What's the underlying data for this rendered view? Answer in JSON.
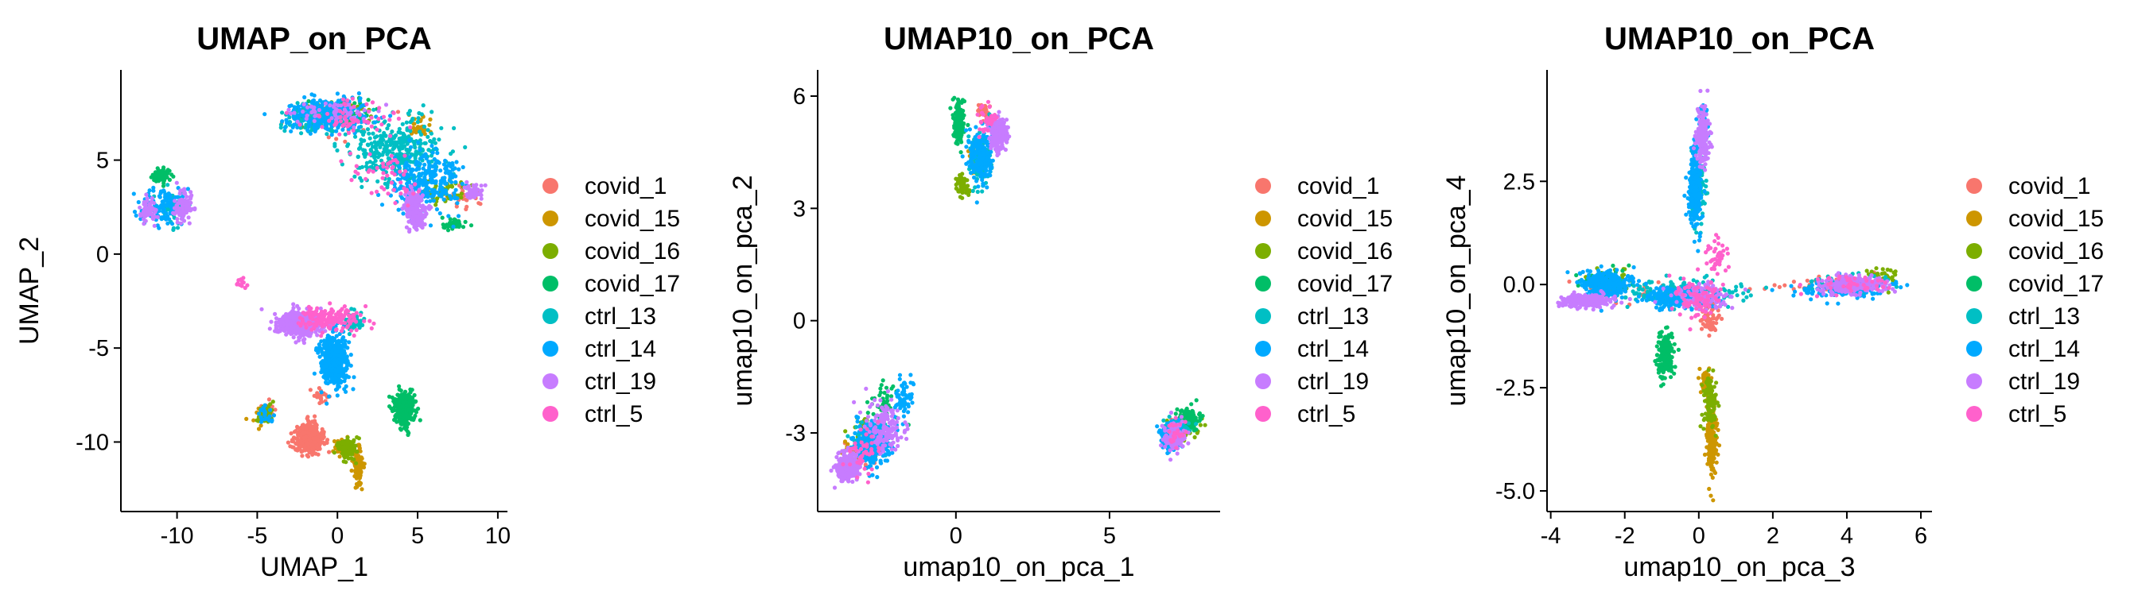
{
  "chart_data": [
    {
      "type": "scatter",
      "title": "UMAP_on_PCA",
      "xlabel": "UMAP_1",
      "ylabel": "UMAP_2",
      "xlim": [
        -13.5,
        10.6
      ],
      "ylim": [
        -13.7,
        9.8
      ],
      "xticks": [
        -10,
        -5,
        0,
        5,
        10
      ],
      "yticks": [
        5,
        0,
        -5,
        -10
      ],
      "ytick_labels": [
        "5",
        "0",
        "-5",
        "-10"
      ],
      "legend_position": "right",
      "series": [
        {
          "name": "covid_1",
          "color": "#F8766D",
          "clusters": [
            {
              "x": -1.8,
              "y": -9.8,
              "sx": 0.8,
              "sy": 0.7,
              "n": 420
            },
            {
              "x": -4.3,
              "y": -8.3,
              "sx": 0.4,
              "sy": 0.4,
              "n": 30
            },
            {
              "x": -1.0,
              "y": -7.6,
              "sx": 0.4,
              "sy": 0.4,
              "n": 25
            },
            {
              "x": 0.0,
              "y": 7.0,
              "sx": 3.0,
              "sy": 1.0,
              "n": 30
            },
            {
              "x": 8.0,
              "y": 3.0,
              "sx": 1.0,
              "sy": 0.7,
              "n": 25
            }
          ]
        },
        {
          "name": "covid_15",
          "color": "#CD9600",
          "clusters": [
            {
              "x": 1.3,
              "y": -11.3,
              "sx": 0.25,
              "sy": 0.9,
              "n": 140
            },
            {
              "x": 0.4,
              "y": -10.3,
              "sx": 0.5,
              "sy": 0.4,
              "n": 60
            },
            {
              "x": 5.2,
              "y": 6.8,
              "sx": 0.6,
              "sy": 0.6,
              "n": 35
            },
            {
              "x": -4.8,
              "y": -8.6,
              "sx": 0.5,
              "sy": 0.6,
              "n": 15
            }
          ]
        },
        {
          "name": "covid_16",
          "color": "#7CAE00",
          "clusters": [
            {
              "x": 0.6,
              "y": -10.3,
              "sx": 0.5,
              "sy": 0.5,
              "n": 140
            },
            {
              "x": -0.2,
              "y": 7.5,
              "sx": 2.3,
              "sy": 0.7,
              "n": 70
            },
            {
              "x": 6.5,
              "y": 3.3,
              "sx": 1.5,
              "sy": 0.7,
              "n": 50
            },
            {
              "x": -4.6,
              "y": -8.4,
              "sx": 0.5,
              "sy": 0.6,
              "n": 30
            }
          ]
        },
        {
          "name": "covid_17",
          "color": "#00BE67",
          "clusters": [
            {
              "x": 4.2,
              "y": -8.2,
              "sx": 0.6,
              "sy": 0.8,
              "n": 300
            },
            {
              "x": -11.0,
              "y": 4.2,
              "sx": 0.5,
              "sy": 0.3,
              "n": 90
            },
            {
              "x": 7.2,
              "y": 1.6,
              "sx": 0.6,
              "sy": 0.3,
              "n": 50
            },
            {
              "x": 0.0,
              "y": 7.5,
              "sx": 2.3,
              "sy": 0.6,
              "n": 60
            }
          ]
        },
        {
          "name": "ctrl_13",
          "color": "#00BFC4",
          "clusters": [
            {
              "x": 3.5,
              "y": 5.5,
              "sx": 2.5,
              "sy": 1.5,
              "n": 350
            },
            {
              "x": -1.0,
              "y": 7.2,
              "sx": 2.3,
              "sy": 0.8,
              "n": 150
            },
            {
              "x": -10.3,
              "y": 2.6,
              "sx": 0.8,
              "sy": 0.8,
              "n": 60
            },
            {
              "x": 1.0,
              "y": -3.6,
              "sx": 0.5,
              "sy": 0.4,
              "n": 60
            }
          ]
        },
        {
          "name": "ctrl_14",
          "color": "#00A9FF",
          "clusters": [
            {
              "x": -0.2,
              "y": -5.7,
              "sx": 0.8,
              "sy": 1.2,
              "n": 450
            },
            {
              "x": -0.6,
              "y": 7.4,
              "sx": 2.4,
              "sy": 0.8,
              "n": 250
            },
            {
              "x": 5.5,
              "y": 3.8,
              "sx": 2.0,
              "sy": 1.5,
              "n": 280
            },
            {
              "x": -11.0,
              "y": 2.6,
              "sx": 1.2,
              "sy": 0.9,
              "n": 120
            },
            {
              "x": -4.5,
              "y": -8.6,
              "sx": 0.4,
              "sy": 0.5,
              "n": 25
            }
          ]
        },
        {
          "name": "ctrl_19",
          "color": "#C77CFF",
          "clusters": [
            {
              "x": -2.4,
              "y": -3.7,
              "sx": 1.3,
              "sy": 0.6,
              "n": 420
            },
            {
              "x": 4.8,
              "y": 2.3,
              "sx": 0.6,
              "sy": 0.8,
              "n": 220
            },
            {
              "x": -9.6,
              "y": 2.5,
              "sx": 0.5,
              "sy": 0.9,
              "n": 90
            },
            {
              "x": -11.8,
              "y": 2.3,
              "sx": 0.5,
              "sy": 0.6,
              "n": 60
            },
            {
              "x": -0.2,
              "y": 7.5,
              "sx": 2.3,
              "sy": 0.6,
              "n": 60
            },
            {
              "x": 8.5,
              "y": 3.3,
              "sx": 0.6,
              "sy": 0.4,
              "n": 50
            }
          ]
        },
        {
          "name": "ctrl_5",
          "color": "#FF61CC",
          "clusters": [
            {
              "x": -0.5,
              "y": -3.4,
              "sx": 1.8,
              "sy": 0.6,
              "n": 150
            },
            {
              "x": 1.0,
              "y": 7.2,
              "sx": 2.4,
              "sy": 0.8,
              "n": 60
            },
            {
              "x": 3.0,
              "y": 4.0,
              "sx": 2.0,
              "sy": 1.2,
              "n": 50
            },
            {
              "x": -6.0,
              "y": -1.5,
              "sx": 0.3,
              "sy": 0.3,
              "n": 12
            }
          ]
        }
      ]
    },
    {
      "type": "scatter",
      "title": "UMAP10_on_PCA",
      "xlabel": "umap10_on_pca_1",
      "ylabel": "umap10_on_pca_2",
      "xlim": [
        -4.5,
        8.6
      ],
      "ylim": [
        -5.1,
        6.7
      ],
      "xticks": [
        0,
        5
      ],
      "yticks": [
        6,
        3,
        0,
        -3
      ],
      "ytick_labels": [
        "6",
        "3",
        "0",
        "-3"
      ],
      "legend_position": "right",
      "series": [
        {
          "name": "covid_1",
          "color": "#F8766D",
          "clusters": [
            {
              "x": 0.9,
              "y": 5.6,
              "sx": 0.15,
              "sy": 0.2,
              "n": 60
            },
            {
              "x": -2.9,
              "y": -3.5,
              "sx": 0.4,
              "sy": 0.4,
              "n": 25
            },
            {
              "x": 7.3,
              "y": -2.8,
              "sx": 0.3,
              "sy": 0.3,
              "n": 15
            }
          ]
        },
        {
          "name": "covid_15",
          "color": "#CD9600",
          "clusters": [
            {
              "x": 0.6,
              "y": 4.2,
              "sx": 0.2,
              "sy": 0.4,
              "n": 25
            },
            {
              "x": -3.0,
              "y": -3.4,
              "sx": 0.5,
              "sy": 0.5,
              "n": 25
            },
            {
              "x": 7.0,
              "y": -3.0,
              "sx": 0.3,
              "sy": 0.3,
              "n": 10
            }
          ]
        },
        {
          "name": "covid_16",
          "color": "#7CAE00",
          "clusters": [
            {
              "x": 0.2,
              "y": 3.6,
              "sx": 0.2,
              "sy": 0.25,
              "n": 50
            },
            {
              "x": 7.5,
              "y": -2.8,
              "sx": 0.4,
              "sy": 0.3,
              "n": 40
            },
            {
              "x": -3.0,
              "y": -3.0,
              "sx": 0.4,
              "sy": 0.4,
              "n": 20
            }
          ]
        },
        {
          "name": "covid_17",
          "color": "#00BE67",
          "clusters": [
            {
              "x": 0.1,
              "y": 5.3,
              "sx": 0.15,
              "sy": 0.5,
              "n": 200
            },
            {
              "x": 7.6,
              "y": -2.6,
              "sx": 0.3,
              "sy": 0.25,
              "n": 120
            },
            {
              "x": -2.4,
              "y": -2.2,
              "sx": 0.4,
              "sy": 0.6,
              "n": 40
            }
          ]
        },
        {
          "name": "ctrl_13",
          "color": "#00BFC4",
          "clusters": [
            {
              "x": 0.8,
              "y": 4.4,
              "sx": 0.3,
              "sy": 0.6,
              "n": 100
            },
            {
              "x": -2.8,
              "y": -3.2,
              "sx": 0.5,
              "sy": 0.5,
              "n": 100
            },
            {
              "x": 7.2,
              "y": -2.9,
              "sx": 0.4,
              "sy": 0.3,
              "n": 60
            }
          ]
        },
        {
          "name": "ctrl_14",
          "color": "#00A9FF",
          "clusters": [
            {
              "x": 0.8,
              "y": 4.4,
              "sx": 0.35,
              "sy": 0.6,
              "n": 220
            },
            {
              "x": -2.7,
              "y": -3.3,
              "sx": 0.55,
              "sy": 0.5,
              "n": 300
            },
            {
              "x": -1.7,
              "y": -2.0,
              "sx": 0.25,
              "sy": 0.5,
              "n": 60
            },
            {
              "x": 7.0,
              "y": -3.1,
              "sx": 0.35,
              "sy": 0.35,
              "n": 120
            }
          ]
        },
        {
          "name": "ctrl_19",
          "color": "#C77CFF",
          "clusters": [
            {
              "x": 1.4,
              "y": 5.0,
              "sx": 0.25,
              "sy": 0.4,
              "n": 200
            },
            {
              "x": -3.5,
              "y": -3.9,
              "sx": 0.35,
              "sy": 0.35,
              "n": 300
            },
            {
              "x": -2.3,
              "y": -2.8,
              "sx": 0.5,
              "sy": 0.6,
              "n": 150
            },
            {
              "x": 7.1,
              "y": -3.1,
              "sx": 0.35,
              "sy": 0.35,
              "n": 120
            }
          ]
        },
        {
          "name": "ctrl_5",
          "color": "#FF61CC",
          "clusters": [
            {
              "x": 1.0,
              "y": 5.4,
              "sx": 0.3,
              "sy": 0.4,
              "n": 30
            },
            {
              "x": -3.0,
              "y": -3.5,
              "sx": 0.5,
              "sy": 0.5,
              "n": 40
            },
            {
              "x": 7.2,
              "y": -3.0,
              "sx": 0.3,
              "sy": 0.3,
              "n": 25
            }
          ]
        }
      ]
    },
    {
      "type": "scatter",
      "title": "UMAP10_on_PCA",
      "xlabel": "umap10_on_pca_3",
      "ylabel": "umap10_on_pca_4",
      "xlim": [
        -4.1,
        6.3
      ],
      "ylim": [
        -5.5,
        5.2
      ],
      "xticks": [
        -4,
        -2,
        0,
        2,
        4,
        6
      ],
      "yticks": [
        2.5,
        0,
        -2.5,
        -5
      ],
      "ytick_labels": [
        "2.5",
        "0.0",
        "-2.5",
        "-5.0"
      ],
      "legend_position": "right",
      "series": [
        {
          "name": "covid_1",
          "color": "#F8766D",
          "clusters": [
            {
              "x": 0.3,
              "y": -0.8,
              "sx": 0.25,
              "sy": 0.4,
              "n": 60
            },
            {
              "x": -2.0,
              "y": -0.1,
              "sx": 1.2,
              "sy": 0.25,
              "n": 40
            },
            {
              "x": 3.5,
              "y": 0.0,
              "sx": 1.5,
              "sy": 0.2,
              "n": 30
            }
          ]
        },
        {
          "name": "covid_15",
          "color": "#CD9600",
          "clusters": [
            {
              "x": 0.35,
              "y": -3.7,
              "sx": 0.12,
              "sy": 0.8,
              "n": 200
            },
            {
              "x": 0.2,
              "y": -2.4,
              "sx": 0.15,
              "sy": 0.4,
              "n": 40
            }
          ]
        },
        {
          "name": "covid_16",
          "color": "#7CAE00",
          "clusters": [
            {
              "x": 0.3,
              "y": -2.8,
              "sx": 0.15,
              "sy": 0.6,
              "n": 100
            },
            {
              "x": -2.4,
              "y": 0.1,
              "sx": 0.5,
              "sy": 0.25,
              "n": 40
            },
            {
              "x": 5.0,
              "y": 0.2,
              "sx": 0.4,
              "sy": 0.2,
              "n": 30
            }
          ]
        },
        {
          "name": "covid_17",
          "color": "#00BE67",
          "clusters": [
            {
              "x": -0.9,
              "y": -1.7,
              "sx": 0.2,
              "sy": 0.5,
              "n": 200
            },
            {
              "x": -2.6,
              "y": 0.1,
              "sx": 0.7,
              "sy": 0.25,
              "n": 50
            }
          ]
        },
        {
          "name": "ctrl_13",
          "color": "#00BFC4",
          "clusters": [
            {
              "x": -0.5,
              "y": -0.2,
              "sx": 1.5,
              "sy": 0.3,
              "n": 200
            },
            {
              "x": 0.0,
              "y": 2.5,
              "sx": 0.15,
              "sy": 1.0,
              "n": 120
            },
            {
              "x": 4.0,
              "y": 0.0,
              "sx": 1.0,
              "sy": 0.2,
              "n": 80
            }
          ]
        },
        {
          "name": "ctrl_14",
          "color": "#00A9FF",
          "clusters": [
            {
              "x": -2.5,
              "y": 0.0,
              "sx": 0.6,
              "sy": 0.3,
              "n": 300
            },
            {
              "x": -0.6,
              "y": -0.3,
              "sx": 0.8,
              "sy": 0.25,
              "n": 250
            },
            {
              "x": -0.1,
              "y": 2.3,
              "sx": 0.15,
              "sy": 0.8,
              "n": 250
            },
            {
              "x": 0.1,
              "y": 3.8,
              "sx": 0.12,
              "sy": 0.5,
              "n": 80
            },
            {
              "x": 4.0,
              "y": -0.1,
              "sx": 1.2,
              "sy": 0.2,
              "n": 120
            }
          ]
        },
        {
          "name": "ctrl_19",
          "color": "#C77CFF",
          "clusters": [
            {
              "x": -3.0,
              "y": -0.4,
              "sx": 0.6,
              "sy": 0.15,
              "n": 200
            },
            {
              "x": 4.2,
              "y": 0.0,
              "sx": 0.9,
              "sy": 0.2,
              "n": 200
            },
            {
              "x": 0.1,
              "y": 3.6,
              "sx": 0.15,
              "sy": 0.7,
              "n": 150
            },
            {
              "x": 0.2,
              "y": -0.3,
              "sx": 0.8,
              "sy": 0.3,
              "n": 100
            }
          ]
        },
        {
          "name": "ctrl_5",
          "color": "#FF61CC",
          "clusters": [
            {
              "x": 0.0,
              "y": -0.3,
              "sx": 0.6,
              "sy": 0.4,
              "n": 90
            },
            {
              "x": 0.5,
              "y": 0.7,
              "sx": 0.3,
              "sy": 0.4,
              "n": 40
            },
            {
              "x": 4.0,
              "y": 0.0,
              "sx": 1.0,
              "sy": 0.2,
              "n": 40
            }
          ]
        }
      ]
    }
  ]
}
